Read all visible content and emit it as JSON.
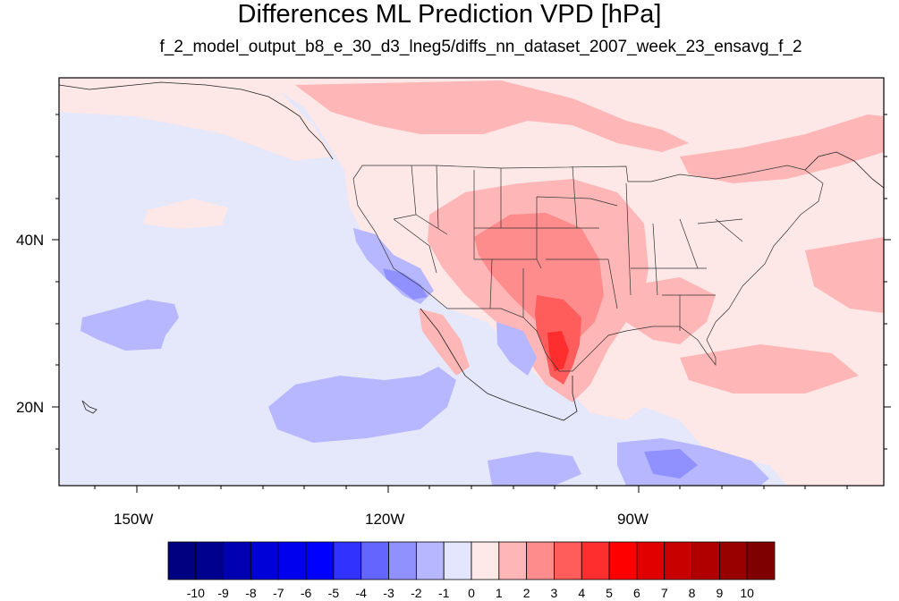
{
  "header": {
    "title": "Differences ML Prediction VPD [hPa]",
    "subtitle": "f_2_model_output_b8_e_30_d3_lneg5/diffs_nn_dataset_2007_week_23_ensavg_f_2"
  },
  "axes": {
    "lat_labels": [
      "40N",
      "20N"
    ],
    "lon_labels": [
      "150W",
      "120W",
      "90W"
    ]
  },
  "colorbar": {
    "labels": [
      "-10",
      "-9",
      "-8",
      "-7",
      "-6",
      "-5",
      "-4",
      "-3",
      "-2",
      "-1",
      "0",
      "1",
      "2",
      "3",
      "4",
      "5",
      "6",
      "7",
      "8",
      "9",
      "10"
    ],
    "colors": [
      "#000080",
      "#00008f",
      "#0000b3",
      "#0000d8",
      "#0000ee",
      "#0000ff",
      "#3232ff",
      "#6464ff",
      "#9090ff",
      "#b7b7ff",
      "#e4e6ff",
      "#ffe8e8",
      "#ffb6b6",
      "#ff8c8c",
      "#ff5c5c",
      "#ff2e2e",
      "#ff0000",
      "#e00000",
      "#c80000",
      "#b00000",
      "#980000",
      "#7f0000"
    ]
  },
  "map": {
    "background_color": "#e5e7fa",
    "land_color": "#fde7e7"
  }
}
